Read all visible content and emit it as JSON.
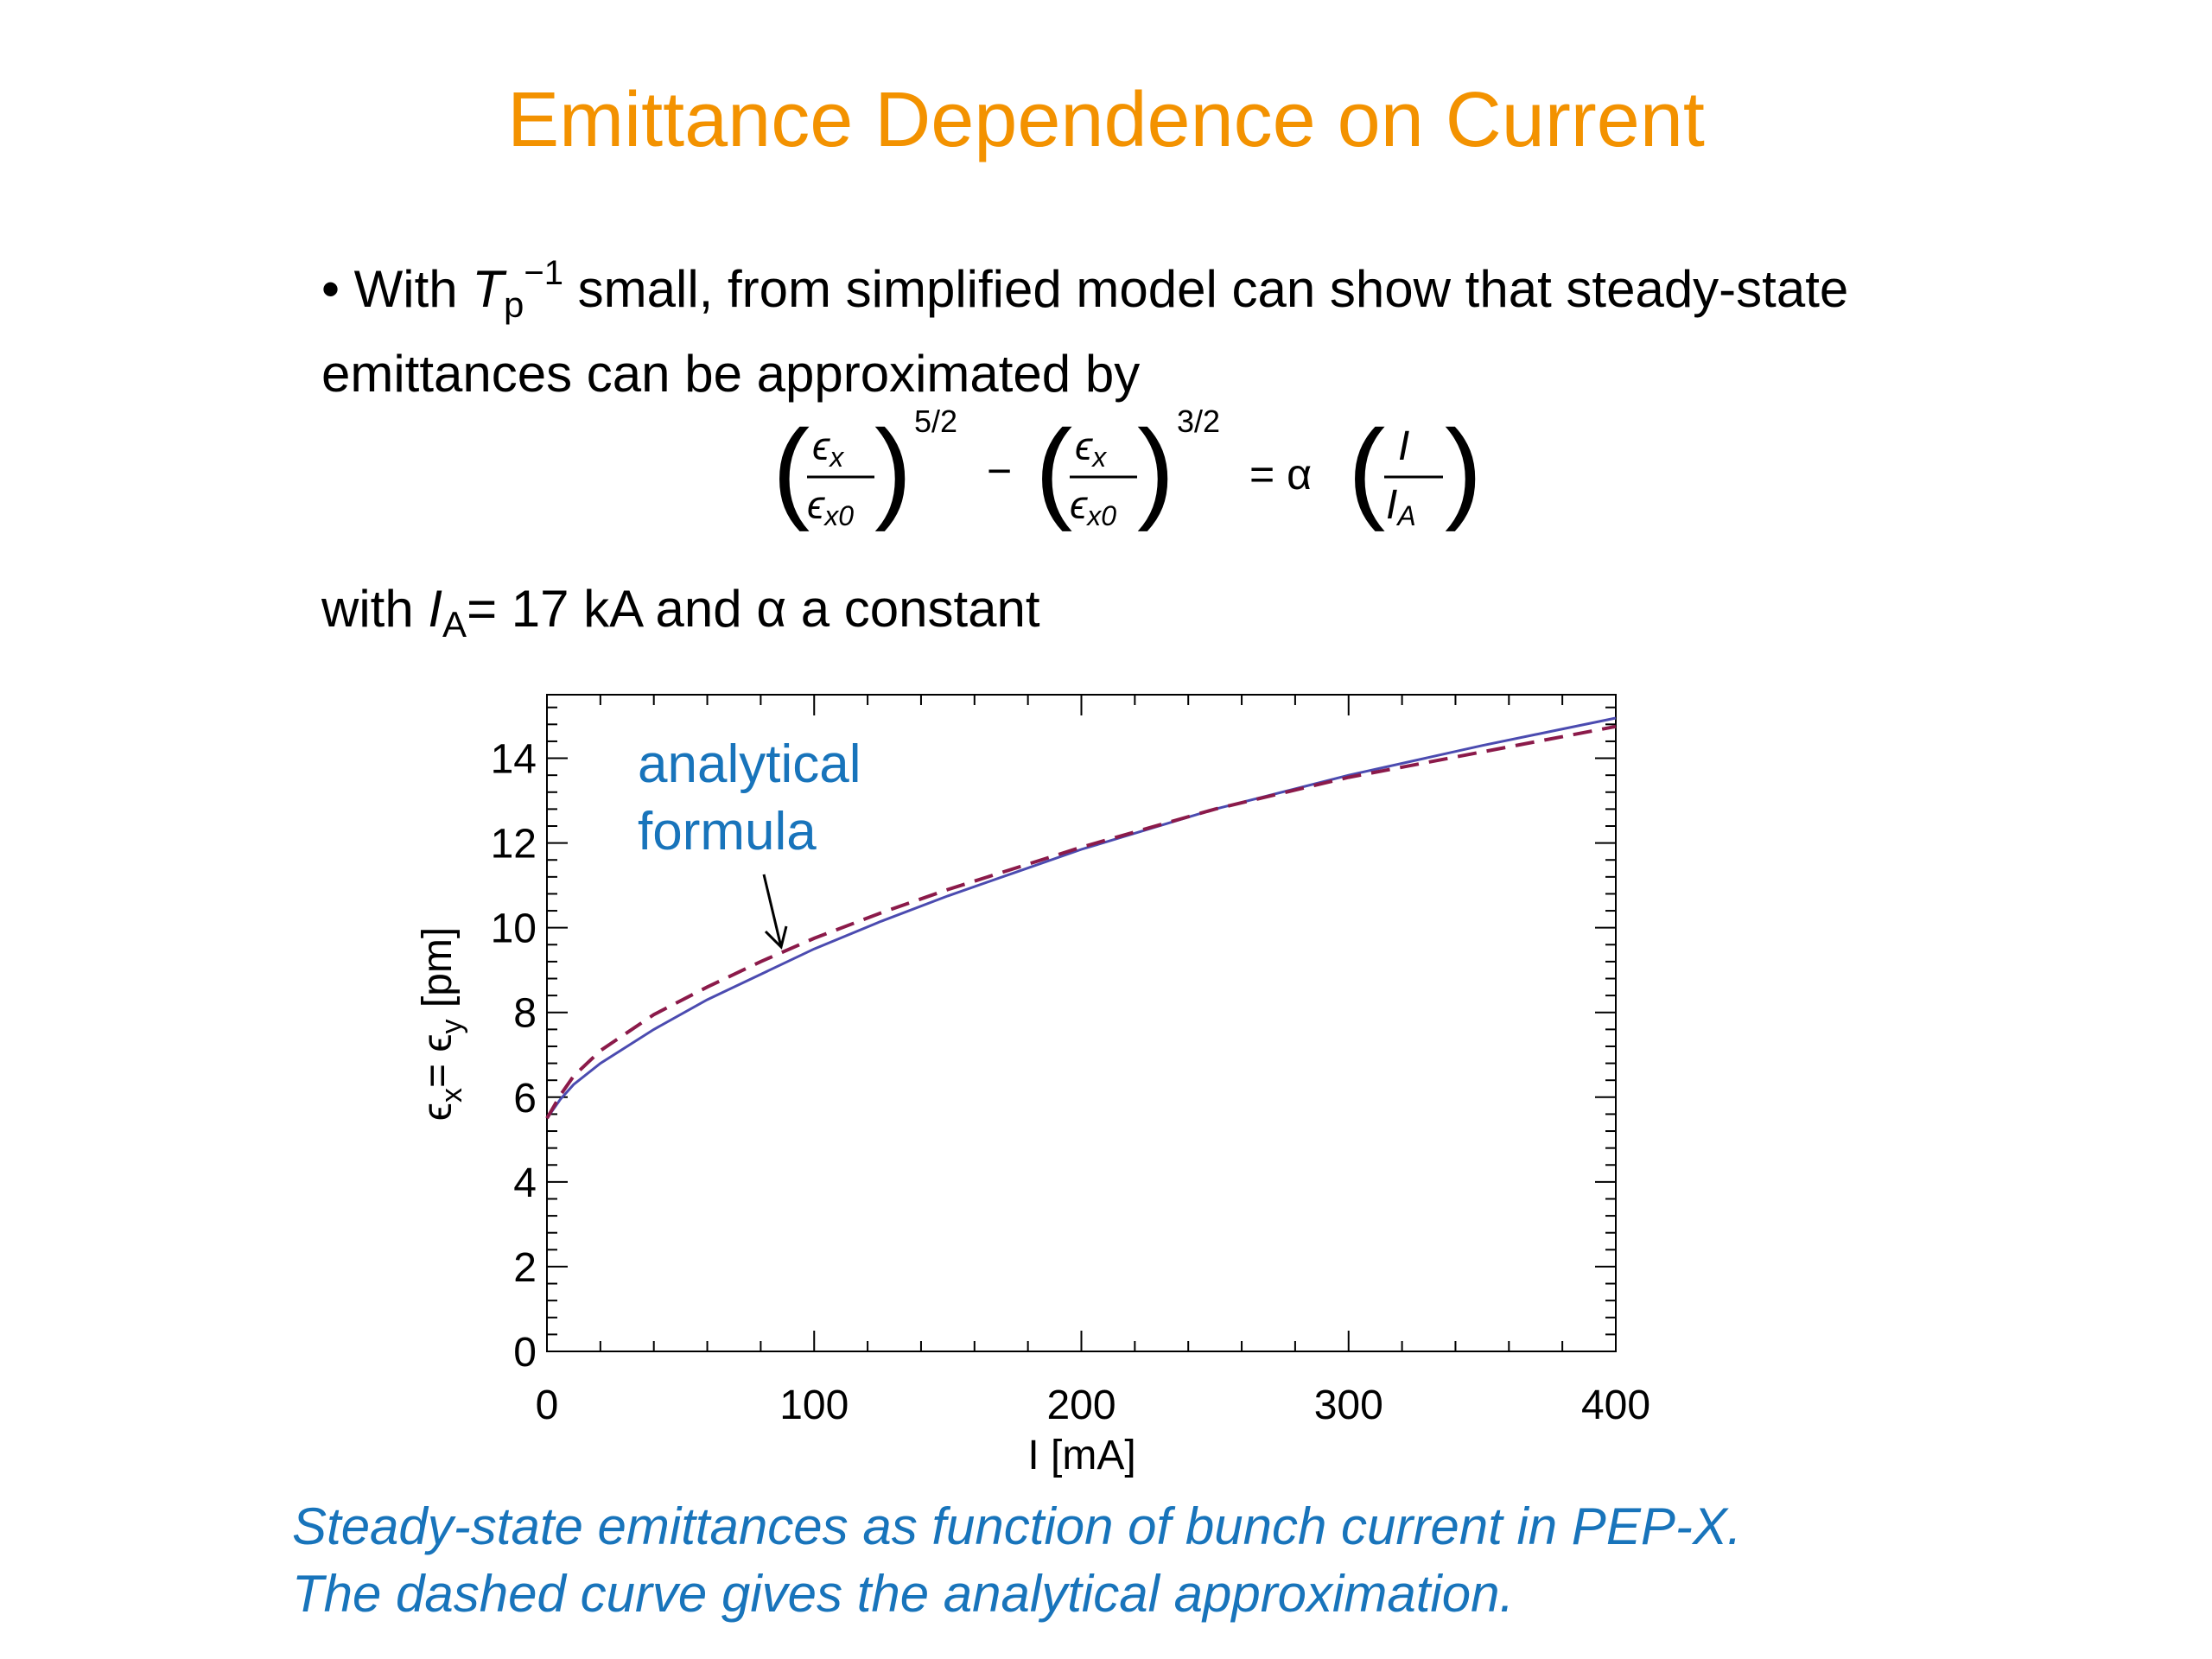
{
  "slide": {
    "title": "Emittance Dependence on Current",
    "bullet_prefix": "• With ",
    "bullet_T": "T",
    "bullet_T_sub": "p",
    "bullet_T_sup": "−1",
    "bullet_text": " small, from simplified model can show that steady-state emittances can be approximated by",
    "equation": {
      "eps": "ϵ",
      "eps_sub": "x",
      "eps0_sub": "x0",
      "exp1": "5/2",
      "exp2": "3/2",
      "minus": "−",
      "equals": "= α",
      "I": "I",
      "I_A": "I",
      "I_A_sub": "A"
    },
    "with_prefix": "with ",
    "with_I": "I",
    "with_I_sub": "A",
    "with_suffix": "= 17 kA and α a constant",
    "caption_line1": "Steady-state emittances as function of bunch current in PEP-X.",
    "caption_line2": "The dashed curve gives the analytical approximation."
  },
  "colors": {
    "title": "#f39200",
    "caption": "#1874bb",
    "annotation": "#1874bb",
    "solid_curve": "#4b4bb0",
    "dashed_curve": "#8b1a4a"
  },
  "chart_data": {
    "type": "line",
    "xlabel": "I [mA]",
    "ylabel": "ϵx= ϵy [pm]",
    "xlim": [
      0,
      400
    ],
    "ylim": [
      0,
      15.5
    ],
    "xticks": [
      "0",
      "100",
      "200",
      "300",
      "400"
    ],
    "yticks": [
      "0",
      "2",
      "4",
      "6",
      "8",
      "10",
      "12",
      "14"
    ],
    "annotation": [
      "analytical",
      "formula"
    ],
    "series": [
      {
        "style": "solid",
        "x": [
          0,
          5,
          10,
          20,
          40,
          60,
          80,
          100,
          125,
          150,
          175,
          200,
          250,
          300,
          350,
          400
        ],
        "y": [
          5.5,
          5.95,
          6.3,
          6.8,
          7.6,
          8.3,
          8.9,
          9.5,
          10.15,
          10.75,
          11.3,
          11.85,
          12.8,
          13.6,
          14.3,
          14.95
        ]
      },
      {
        "style": "dashed",
        "x": [
          0,
          5,
          10,
          20,
          40,
          60,
          80,
          100,
          125,
          150,
          175,
          200,
          250,
          300,
          350,
          400
        ],
        "y": [
          5.5,
          6.05,
          6.5,
          7.1,
          7.95,
          8.6,
          9.2,
          9.75,
          10.35,
          10.9,
          11.4,
          11.9,
          12.8,
          13.55,
          14.15,
          14.75
        ]
      }
    ]
  }
}
